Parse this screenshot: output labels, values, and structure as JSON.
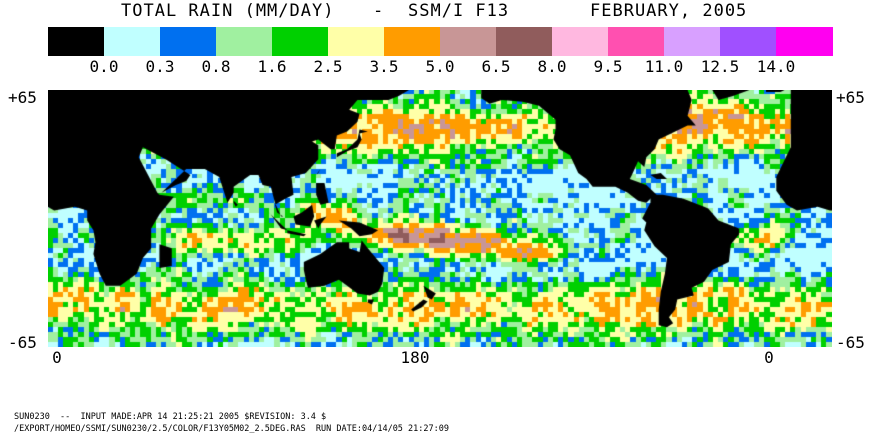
{
  "header": {
    "title": "TOTAL RAIN (MM/DAY)",
    "separator": "-",
    "instrument": "SSM/I F13",
    "period": "FEBRUARY, 2005"
  },
  "legend": {
    "colors": [
      "#000000",
      "#c0ffff",
      "#0070f0",
      "#a0f0a0",
      "#00d000",
      "#ffffa8",
      "#ff9c00",
      "#c89696",
      "#905c5c",
      "#ffb8e0",
      "#ff50b0",
      "#d8a0ff",
      "#a050ff",
      "#ff00f0"
    ],
    "tick_labels": [
      "0.0",
      "0.3",
      "0.8",
      "1.6",
      "2.5",
      "3.5",
      "5.0",
      "6.5",
      "8.0",
      "9.5",
      "11.0",
      "12.5",
      "14.0"
    ]
  },
  "map": {
    "lat_top_left": "+65",
    "lat_top_right": "+65",
    "lat_bottom_left": "-65",
    "lat_bottom_right": "-65",
    "lon_labels": [
      "0",
      "180",
      "0"
    ],
    "lat_range": [
      -65,
      65
    ],
    "grid_resolution_deg": 2.5,
    "land_color": "#000000"
  },
  "footer": {
    "line1": "SUN0230  --  INPUT MADE:APR 14 21:25:21 2005 $REVISION: 3.4 $",
    "line2": "/EXPORT/HOMEO/SSMI/SUN0230/2.5/COLOR/F13Y05M02_2.5DEG.RAS  RUN DATE:04/14/05 21:27:09"
  }
}
